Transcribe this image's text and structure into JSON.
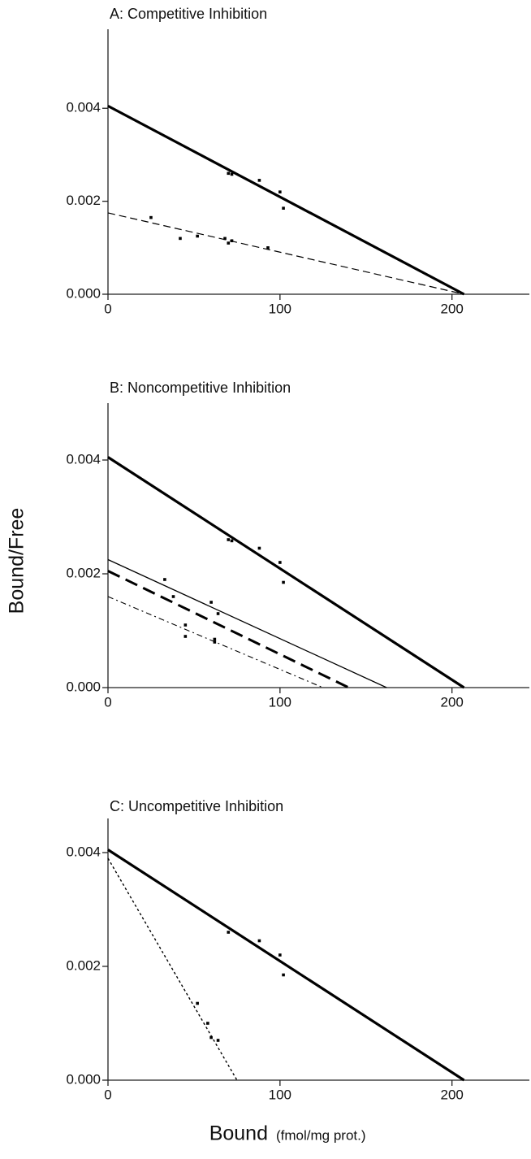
{
  "chart_data": [
    {
      "type": "line",
      "title": "A: Competitive Inhibition",
      "xlim": [
        0,
        245
      ],
      "xticks": [
        0,
        100,
        200
      ],
      "ylim": [
        0,
        0.0057
      ],
      "yticks": [
        {
          "value": 0,
          "label": "0.000"
        },
        {
          "value": 0.002,
          "label": "0.002"
        },
        {
          "value": 0.004,
          "label": "0.004"
        }
      ],
      "series": [
        {
          "mode": "line",
          "linestyle": "solid-bold",
          "color": "#000",
          "x": [
            0,
            207
          ],
          "values": [
            0.00405,
            0
          ]
        },
        {
          "mode": "line",
          "linestyle": "dashed",
          "color": "#000",
          "x": [
            0,
            207
          ],
          "values": [
            0.00175,
            0
          ]
        },
        {
          "mode": "markers",
          "color": "#000",
          "x": [
            70,
            72,
            88,
            100,
            102
          ],
          "values": [
            0.0026,
            0.00258,
            0.00245,
            0.0022,
            0.00185
          ]
        },
        {
          "mode": "markers",
          "color": "#000",
          "x": [
            25,
            42,
            52,
            68,
            70,
            72,
            93
          ],
          "values": [
            0.00165,
            0.0012,
            0.00125,
            0.0012,
            0.0011,
            0.00115,
            0.001
          ]
        }
      ]
    },
    {
      "type": "line",
      "title": "B: Noncompetitive Inhibition",
      "ylabel": "Bound/Free",
      "xlim": [
        0,
        245
      ],
      "xticks": [
        0,
        100,
        200
      ],
      "ylim": [
        0,
        0.005
      ],
      "yticks": [
        {
          "value": 0,
          "label": "0.000"
        },
        {
          "value": 0.002,
          "label": "0.002"
        },
        {
          "value": 0.004,
          "label": "0.004"
        }
      ],
      "series": [
        {
          "mode": "line",
          "linestyle": "solid-bold",
          "color": "#000",
          "x": [
            0,
            207
          ],
          "values": [
            0.00405,
            0
          ]
        },
        {
          "mode": "line",
          "linestyle": "solid",
          "color": "#000",
          "x": [
            0,
            162
          ],
          "values": [
            0.00225,
            0
          ]
        },
        {
          "mode": "line",
          "linestyle": "dashed-bold",
          "color": "#000",
          "x": [
            0,
            140
          ],
          "values": [
            0.00205,
            0
          ]
        },
        {
          "mode": "line",
          "linestyle": "dash-dot",
          "color": "#000",
          "x": [
            0,
            125
          ],
          "values": [
            0.0016,
            0
          ]
        },
        {
          "mode": "markers",
          "color": "#000",
          "x": [
            70,
            72,
            88,
            100,
            102
          ],
          "values": [
            0.0026,
            0.00258,
            0.00245,
            0.0022,
            0.00185
          ]
        },
        {
          "mode": "markers",
          "color": "#000",
          "x": [
            33,
            38,
            45,
            45,
            60,
            62,
            62,
            64
          ],
          "values": [
            0.0019,
            0.0016,
            0.0011,
            0.0009,
            0.0015,
            0.00085,
            0.0008,
            0.0013
          ]
        }
      ]
    },
    {
      "type": "line",
      "title": "C: Uncompetitive Inhibition",
      "xlabel": "Bound",
      "xlabel_unit": "(fmol/mg prot.)",
      "xlim": [
        0,
        245
      ],
      "xticks": [
        0,
        100,
        200
      ],
      "ylim": [
        0,
        0.0046
      ],
      "yticks": [
        {
          "value": 0,
          "label": "0.000"
        },
        {
          "value": 0.002,
          "label": "0.002"
        },
        {
          "value": 0.004,
          "label": "0.004"
        }
      ],
      "series": [
        {
          "mode": "line",
          "linestyle": "solid-bold",
          "color": "#000",
          "x": [
            0,
            207
          ],
          "values": [
            0.00405,
            0
          ]
        },
        {
          "mode": "line",
          "linestyle": "dotted",
          "color": "#000",
          "x": [
            0,
            75
          ],
          "values": [
            0.0039,
            0
          ]
        },
        {
          "mode": "markers",
          "color": "#000",
          "x": [
            70,
            88,
            100,
            102
          ],
          "values": [
            0.0026,
            0.00245,
            0.0022,
            0.00185
          ]
        },
        {
          "mode": "markers",
          "color": "#000",
          "x": [
            52,
            58,
            60,
            64
          ],
          "values": [
            0.00135,
            0.001,
            0.00075,
            0.0007
          ]
        }
      ]
    }
  ]
}
